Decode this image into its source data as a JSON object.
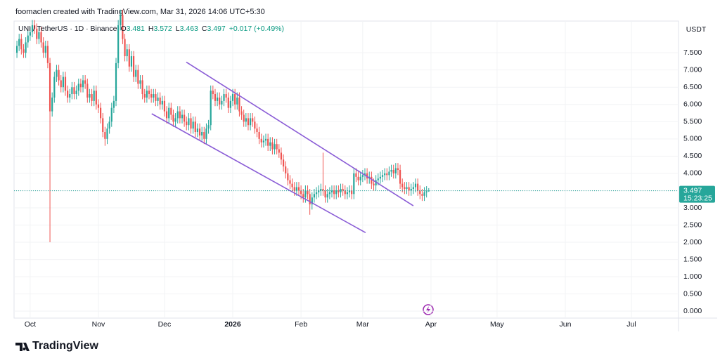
{
  "header": {
    "attribution": "foomaclen created with TradingView.com, Mar 31, 2026 14:06 UTC+5:30"
  },
  "footer": {
    "brand": "TradingView"
  },
  "chart_data": {
    "type": "candlestick",
    "symbol": "UNI / TetherUS · 1D · Binance",
    "legend_keys": [
      "O",
      "H",
      "L",
      "C"
    ],
    "change": "+0.017 (+0.49%)",
    "currency": "USDT",
    "countdown": "15:23:25",
    "up_color": "#26a69a",
    "down_color": "#ef5350",
    "trendline_color": "#8a5cd6",
    "xlim": [
      -1.3,
      300.4
    ],
    "ylim": [
      -0.2,
      8.42
    ],
    "xticks": [
      {
        "value": 6,
        "label": "Oct"
      },
      {
        "value": 37,
        "label": "Nov"
      },
      {
        "value": 67,
        "label": "Dec"
      },
      {
        "value": 98,
        "label": "2026"
      },
      {
        "value": 129,
        "label": "Feb"
      },
      {
        "value": 157,
        "label": "Mar"
      },
      {
        "value": 188,
        "label": "Apr"
      },
      {
        "value": 218,
        "label": "May"
      },
      {
        "value": 249,
        "label": "Jun"
      },
      {
        "value": 279,
        "label": "Jul"
      }
    ],
    "yticks": [
      {
        "value": 0,
        "label": "0.000"
      },
      {
        "value": 0.5,
        "label": "0.500"
      },
      {
        "value": 1,
        "label": "1.000"
      },
      {
        "value": 1.5,
        "label": "1.500"
      },
      {
        "value": 2,
        "label": "2.000"
      },
      {
        "value": 2.5,
        "label": "2.500"
      },
      {
        "value": 3,
        "label": "3.000"
      },
      {
        "value": 3.5,
        "label": "3.500"
      },
      {
        "value": 4,
        "label": "4.000"
      },
      {
        "value": 4.5,
        "label": "4.500"
      },
      {
        "value": 5,
        "label": "5.000"
      },
      {
        "value": 5.5,
        "label": "5.500"
      },
      {
        "value": 6,
        "label": "6.000"
      },
      {
        "value": 6.5,
        "label": "6.500"
      },
      {
        "value": 7,
        "label": "7.000"
      },
      {
        "value": 7.5,
        "label": "7.500"
      }
    ],
    "grid": true,
    "trendlines": [
      {
        "x": [
          76.9,
          180
        ],
        "y": [
          7.23,
          3.06
        ]
      },
      {
        "x": [
          61.2,
          158.3
        ],
        "y": [
          5.73,
          2.28
        ]
      }
    ],
    "open": [
      7.5,
      7.7,
      7.9,
      7.6,
      7.5,
      7.8,
      8.0,
      8.1,
      8.3,
      8.2,
      7.9,
      8.1,
      7.8,
      7.5,
      7.7,
      7.2,
      5.8,
      6.2,
      6.8,
      7.0,
      6.7,
      6.5,
      6.8,
      6.4,
      6.2,
      6.3,
      6.5,
      6.3,
      6.4,
      6.6,
      6.5,
      6.7,
      6.6,
      6.2,
      6.3,
      6.1,
      6.4,
      6.0,
      5.9,
      5.6,
      5.2,
      5.0,
      5.3,
      5.5,
      5.9,
      6.1,
      7.2,
      8.3,
      8.6,
      7.9,
      7.4,
      7.6,
      7.1,
      7.4,
      6.8,
      7.0,
      6.6,
      6.7,
      6.3,
      6.2,
      6.4,
      6.3,
      6.2,
      6.3,
      6.1,
      6.2,
      6.0,
      6.1,
      5.8,
      5.6,
      5.9,
      5.7,
      5.5,
      5.6,
      5.8,
      5.6,
      5.7,
      5.5,
      5.4,
      5.6,
      5.3,
      5.5,
      5.2,
      5.3,
      5.1,
      5.2,
      5.0,
      5.3,
      5.4,
      6.4,
      6.3,
      6.1,
      6.2,
      6.0,
      6.1,
      6.3,
      6.2,
      5.9,
      6.1,
      6.3,
      6.0,
      6.2,
      5.8,
      5.7,
      5.5,
      5.6,
      5.4,
      5.6,
      5.5,
      5.3,
      5.2,
      5.0,
      4.9,
      4.95,
      5.0,
      4.8,
      4.9,
      4.7,
      4.85,
      4.7,
      4.6,
      4.4,
      4.2,
      4.0,
      3.8,
      3.7,
      3.6,
      3.5,
      3.6,
      3.5,
      3.4,
      3.3,
      3.5,
      3.4,
      3.1,
      3.3,
      3.4,
      3.45,
      3.5,
      3.55,
      3.5,
      3.3,
      3.4,
      3.45,
      3.5,
      3.4,
      3.5,
      3.45,
      3.55,
      3.5,
      3.4,
      3.45,
      3.5,
      3.4,
      4.0,
      3.9,
      3.8,
      3.9,
      3.95,
      4.0,
      3.85,
      3.9,
      3.7,
      3.65,
      3.8,
      3.85,
      3.9,
      3.95,
      4.0,
      3.95,
      4.05,
      4.1,
      4.0,
      4.15,
      4.1,
      3.7,
      3.6,
      3.55,
      3.6,
      3.5,
      3.55,
      3.6,
      3.7,
      3.5,
      3.4,
      3.35,
      3.45,
      3.481
    ],
    "high": [
      7.85,
      8.05,
      8.05,
      7.75,
      7.95,
      8.15,
      8.25,
      8.45,
      8.45,
      8.35,
      8.25,
      8.25,
      7.95,
      7.85,
      7.85,
      7.35,
      6.35,
      6.95,
      7.15,
      7.15,
      6.85,
      6.95,
      6.95,
      6.55,
      6.45,
      6.65,
      6.65,
      6.55,
      6.75,
      6.75,
      6.85,
      6.85,
      6.75,
      6.45,
      6.45,
      6.55,
      6.55,
      6.15,
      6.05,
      5.75,
      5.35,
      5.45,
      5.65,
      6.05,
      6.25,
      7.35,
      8.45,
      8.75,
      8.75,
      8.05,
      7.75,
      7.75,
      7.55,
      7.55,
      7.15,
      7.15,
      6.85,
      6.85,
      6.45,
      6.55,
      6.55,
      6.45,
      6.45,
      6.45,
      6.35,
      6.35,
      6.25,
      6.25,
      5.95,
      6.05,
      6.05,
      5.85,
      5.75,
      5.95,
      5.95,
      5.85,
      5.85,
      5.65,
      5.75,
      5.75,
      5.65,
      5.65,
      5.45,
      5.45,
      5.35,
      5.35,
      5.45,
      5.55,
      6.55,
      6.55,
      6.45,
      6.35,
      6.35,
      6.25,
      6.45,
      6.45,
      6.35,
      6.25,
      6.45,
      6.45,
      6.35,
      6.35,
      5.95,
      5.85,
      5.75,
      5.75,
      5.75,
      5.75,
      5.65,
      5.45,
      5.35,
      5.15,
      5.1,
      5.15,
      5.15,
      5.05,
      5.05,
      5.0,
      5.0,
      4.85,
      4.75,
      4.55,
      4.35,
      4.15,
      3.95,
      3.85,
      3.75,
      3.75,
      3.75,
      3.65,
      3.55,
      3.65,
      3.65,
      3.55,
      3.45,
      3.55,
      3.6,
      3.65,
      3.7,
      4.6,
      3.65,
      3.55,
      3.6,
      3.65,
      3.65,
      3.65,
      3.65,
      3.7,
      3.7,
      3.65,
      3.6,
      3.65,
      3.65,
      4.15,
      4.15,
      4.05,
      4.05,
      4.1,
      4.15,
      4.15,
      4.05,
      4.05,
      3.85,
      3.95,
      4.0,
      4.05,
      4.1,
      4.15,
      4.15,
      4.2,
      4.25,
      4.25,
      4.3,
      4.3,
      4.25,
      3.85,
      3.75,
      3.75,
      3.75,
      3.7,
      3.75,
      3.85,
      3.85,
      3.65,
      3.55,
      3.6,
      3.63,
      3.572
    ],
    "low": [
      7.35,
      7.55,
      7.45,
      7.35,
      7.35,
      7.65,
      7.85,
      7.95,
      8.05,
      7.75,
      7.75,
      7.65,
      7.35,
      7.35,
      7.05,
      2.0,
      5.65,
      6.05,
      6.65,
      6.55,
      6.35,
      6.35,
      6.25,
      6.05,
      6.05,
      6.15,
      6.15,
      6.15,
      6.25,
      6.35,
      6.35,
      6.45,
      6.05,
      6.05,
      5.95,
      5.95,
      5.85,
      5.75,
      5.45,
      5.05,
      4.8,
      4.85,
      5.15,
      5.35,
      5.75,
      5.95,
      7.05,
      8.15,
      7.75,
      7.25,
      7.25,
      6.95,
      6.95,
      6.65,
      6.65,
      6.45,
      6.45,
      6.15,
      6.05,
      6.05,
      6.15,
      6.05,
      6.05,
      5.95,
      5.95,
      5.85,
      5.85,
      5.65,
      5.45,
      5.45,
      5.55,
      5.35,
      5.35,
      5.45,
      5.45,
      5.45,
      5.35,
      5.25,
      5.25,
      5.15,
      5.15,
      5.05,
      5.05,
      4.95,
      4.95,
      4.85,
      4.85,
      5.15,
      5.25,
      6.15,
      5.95,
      5.95,
      5.85,
      5.85,
      5.95,
      6.05,
      5.75,
      5.75,
      5.95,
      5.85,
      5.85,
      5.65,
      5.55,
      5.35,
      5.35,
      5.25,
      5.25,
      5.35,
      5.15,
      5.05,
      4.85,
      4.75,
      4.75,
      4.8,
      4.65,
      4.65,
      4.55,
      4.55,
      4.55,
      4.45,
      4.25,
      4.05,
      3.85,
      3.65,
      3.55,
      3.45,
      3.35,
      3.35,
      3.35,
      3.25,
      3.15,
      3.15,
      3.25,
      2.8,
      2.95,
      3.15,
      3.25,
      3.3,
      3.35,
      3.35,
      3.15,
      3.15,
      3.25,
      3.3,
      3.25,
      3.25,
      3.3,
      3.3,
      3.35,
      3.25,
      3.25,
      3.3,
      3.25,
      3.25,
      3.75,
      3.65,
      3.65,
      3.75,
      3.8,
      3.7,
      3.7,
      3.55,
      3.5,
      3.5,
      3.65,
      3.7,
      3.75,
      3.8,
      3.8,
      3.8,
      3.9,
      3.85,
      3.85,
      3.95,
      3.55,
      3.45,
      3.4,
      3.4,
      3.35,
      3.35,
      3.4,
      3.45,
      3.35,
      3.25,
      3.2,
      3.2,
      3.3,
      3.463
    ],
    "close": [
      7.7,
      7.9,
      7.6,
      7.5,
      7.8,
      8.0,
      8.1,
      8.3,
      8.2,
      7.9,
      8.1,
      7.8,
      7.5,
      7.7,
      7.2,
      5.8,
      6.2,
      6.8,
      7.0,
      6.7,
      6.5,
      6.8,
      6.4,
      6.2,
      6.3,
      6.5,
      6.3,
      6.4,
      6.6,
      6.5,
      6.7,
      6.6,
      6.2,
      6.3,
      6.1,
      6.4,
      6.0,
      5.9,
      5.6,
      5.2,
      5.0,
      5.3,
      5.5,
      5.9,
      6.1,
      7.2,
      8.3,
      8.6,
      7.9,
      7.4,
      7.6,
      7.1,
      7.4,
      6.8,
      7.0,
      6.6,
      6.7,
      6.3,
      6.2,
      6.4,
      6.3,
      6.2,
      6.3,
      6.1,
      6.2,
      6.0,
      6.1,
      5.8,
      5.6,
      5.9,
      5.7,
      5.5,
      5.6,
      5.8,
      5.6,
      5.7,
      5.5,
      5.4,
      5.6,
      5.3,
      5.5,
      5.2,
      5.3,
      5.1,
      5.2,
      5.0,
      5.3,
      5.4,
      6.4,
      6.3,
      6.1,
      6.2,
      6.0,
      6.1,
      6.3,
      6.2,
      5.9,
      6.1,
      6.3,
      6.0,
      6.2,
      5.8,
      5.7,
      5.5,
      5.6,
      5.4,
      5.6,
      5.5,
      5.3,
      5.2,
      5.0,
      4.9,
      4.95,
      5.0,
      4.8,
      4.9,
      4.7,
      4.85,
      4.7,
      4.6,
      4.4,
      4.2,
      4.0,
      3.8,
      3.7,
      3.6,
      3.5,
      3.6,
      3.5,
      3.4,
      3.3,
      3.5,
      3.4,
      3.1,
      3.3,
      3.4,
      3.45,
      3.5,
      3.55,
      3.5,
      3.3,
      3.4,
      3.45,
      3.5,
      3.4,
      3.5,
      3.45,
      3.55,
      3.5,
      3.4,
      3.45,
      3.5,
      3.4,
      4.0,
      3.9,
      3.8,
      3.9,
      3.95,
      4.0,
      3.85,
      3.9,
      3.7,
      3.65,
      3.8,
      3.85,
      3.9,
      3.95,
      4.0,
      3.95,
      4.05,
      4.1,
      4.0,
      4.15,
      4.1,
      3.7,
      3.6,
      3.55,
      3.6,
      3.5,
      3.55,
      3.6,
      3.7,
      3.5,
      3.4,
      3.35,
      3.45,
      3.48,
      3.497
    ]
  }
}
